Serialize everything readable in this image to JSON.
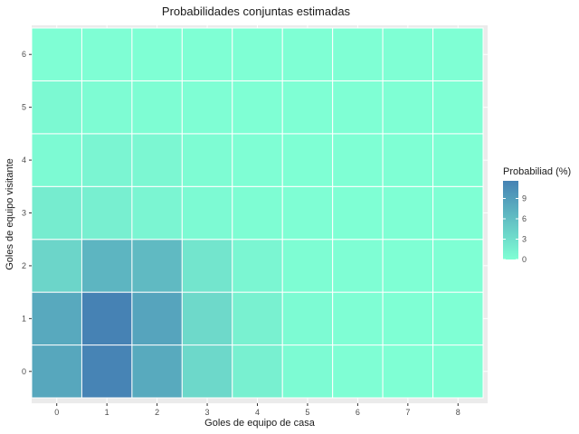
{
  "chart_data": {
    "type": "heatmap",
    "title": "Probabilidades conjuntas estimadas",
    "xlabel": "Goles de equipo de casa",
    "ylabel": "Goles de equipo visitante",
    "x": [
      "0",
      "1",
      "2",
      "3",
      "4",
      "5",
      "6",
      "7",
      "8"
    ],
    "y": [
      "0",
      "1",
      "2",
      "3",
      "4",
      "5",
      "6"
    ],
    "values": [
      [
        8.2,
        11.4,
        7.9,
        3.6,
        1.4,
        0.4,
        0.1,
        0.0,
        0.0
      ],
      [
        8.0,
        11.6,
        8.4,
        3.5,
        1.3,
        0.4,
        0.1,
        0.0,
        0.0
      ],
      [
        3.9,
        6.9,
        6.4,
        2.4,
        0.8,
        0.2,
        0.1,
        0.0,
        0.0
      ],
      [
        1.8,
        1.5,
        0.9,
        0.5,
        0.2,
        0.1,
        0.0,
        0.0,
        0.0
      ],
      [
        0.5,
        0.9,
        0.7,
        0.3,
        0.1,
        0.0,
        0.0,
        0.0,
        0.0
      ],
      [
        0.6,
        0.3,
        0.2,
        0.1,
        0.0,
        0.0,
        0.0,
        0.0,
        0.0
      ],
      [
        0.1,
        0.1,
        0.0,
        0.0,
        0.0,
        0.0,
        0.0,
        0.0,
        0.0
      ]
    ],
    "legend": {
      "title": "Probabiliad (%)",
      "ticks": [
        0,
        3,
        6,
        9
      ],
      "range": [
        0,
        11.6
      ],
      "low_color": "#7fffd4",
      "high_color": "#4682b4",
      "placement": "right"
    },
    "colors": {
      "panel_background": "#ebebeb",
      "grid": "#ffffff"
    }
  }
}
